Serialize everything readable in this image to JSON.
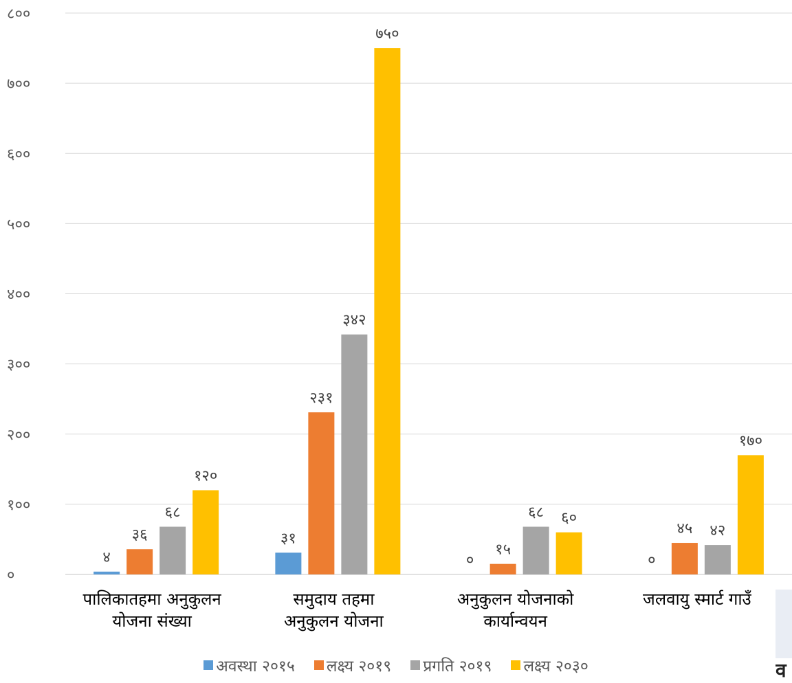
{
  "chart_data": {
    "type": "bar",
    "categories": [
      [
        "पालिकातहमा अनुकुलन",
        "योजना  संख्या"
      ],
      [
        "समुदाय तहमा",
        "अनुकुलन योजना"
      ],
      [
        "अनुकुलन योजनाको",
        "कार्यान्वयन"
      ],
      [
        "जलवायु स्मार्ट गाउँ"
      ]
    ],
    "series": [
      {
        "name": "अवस्था २०१५",
        "color": "#5b9bd5",
        "values": [
          4,
          31,
          0,
          0
        ],
        "labels": [
          "४",
          "३१",
          "०",
          "०"
        ]
      },
      {
        "name": "लक्ष्य २०१९",
        "color": "#ed7d31",
        "values": [
          36,
          231,
          15,
          45
        ],
        "labels": [
          "३६",
          "२३१",
          "१५",
          "४५"
        ]
      },
      {
        "name": "प्रगति २०१९",
        "color": "#a5a5a5",
        "values": [
          68,
          342,
          68,
          42
        ],
        "labels": [
          "६८",
          "३४२",
          "६८",
          "४२"
        ]
      },
      {
        "name": "लक्ष्य २०३०",
        "color": "#ffc000",
        "values": [
          120,
          750,
          60,
          170
        ],
        "labels": [
          "१२०",
          "७५०",
          "६०",
          "१७०"
        ]
      }
    ],
    "ylim": [
      0,
      800
    ],
    "yticks": [
      0,
      100,
      200,
      300,
      400,
      500,
      600,
      700,
      800
    ],
    "ytick_labels": [
      "०",
      "१००",
      "२००",
      "३००",
      "४००",
      "५००",
      "६००",
      "७००",
      "८००"
    ],
    "grid": true,
    "legend_position": "bottom"
  },
  "edge": {
    "glyph": "व"
  }
}
